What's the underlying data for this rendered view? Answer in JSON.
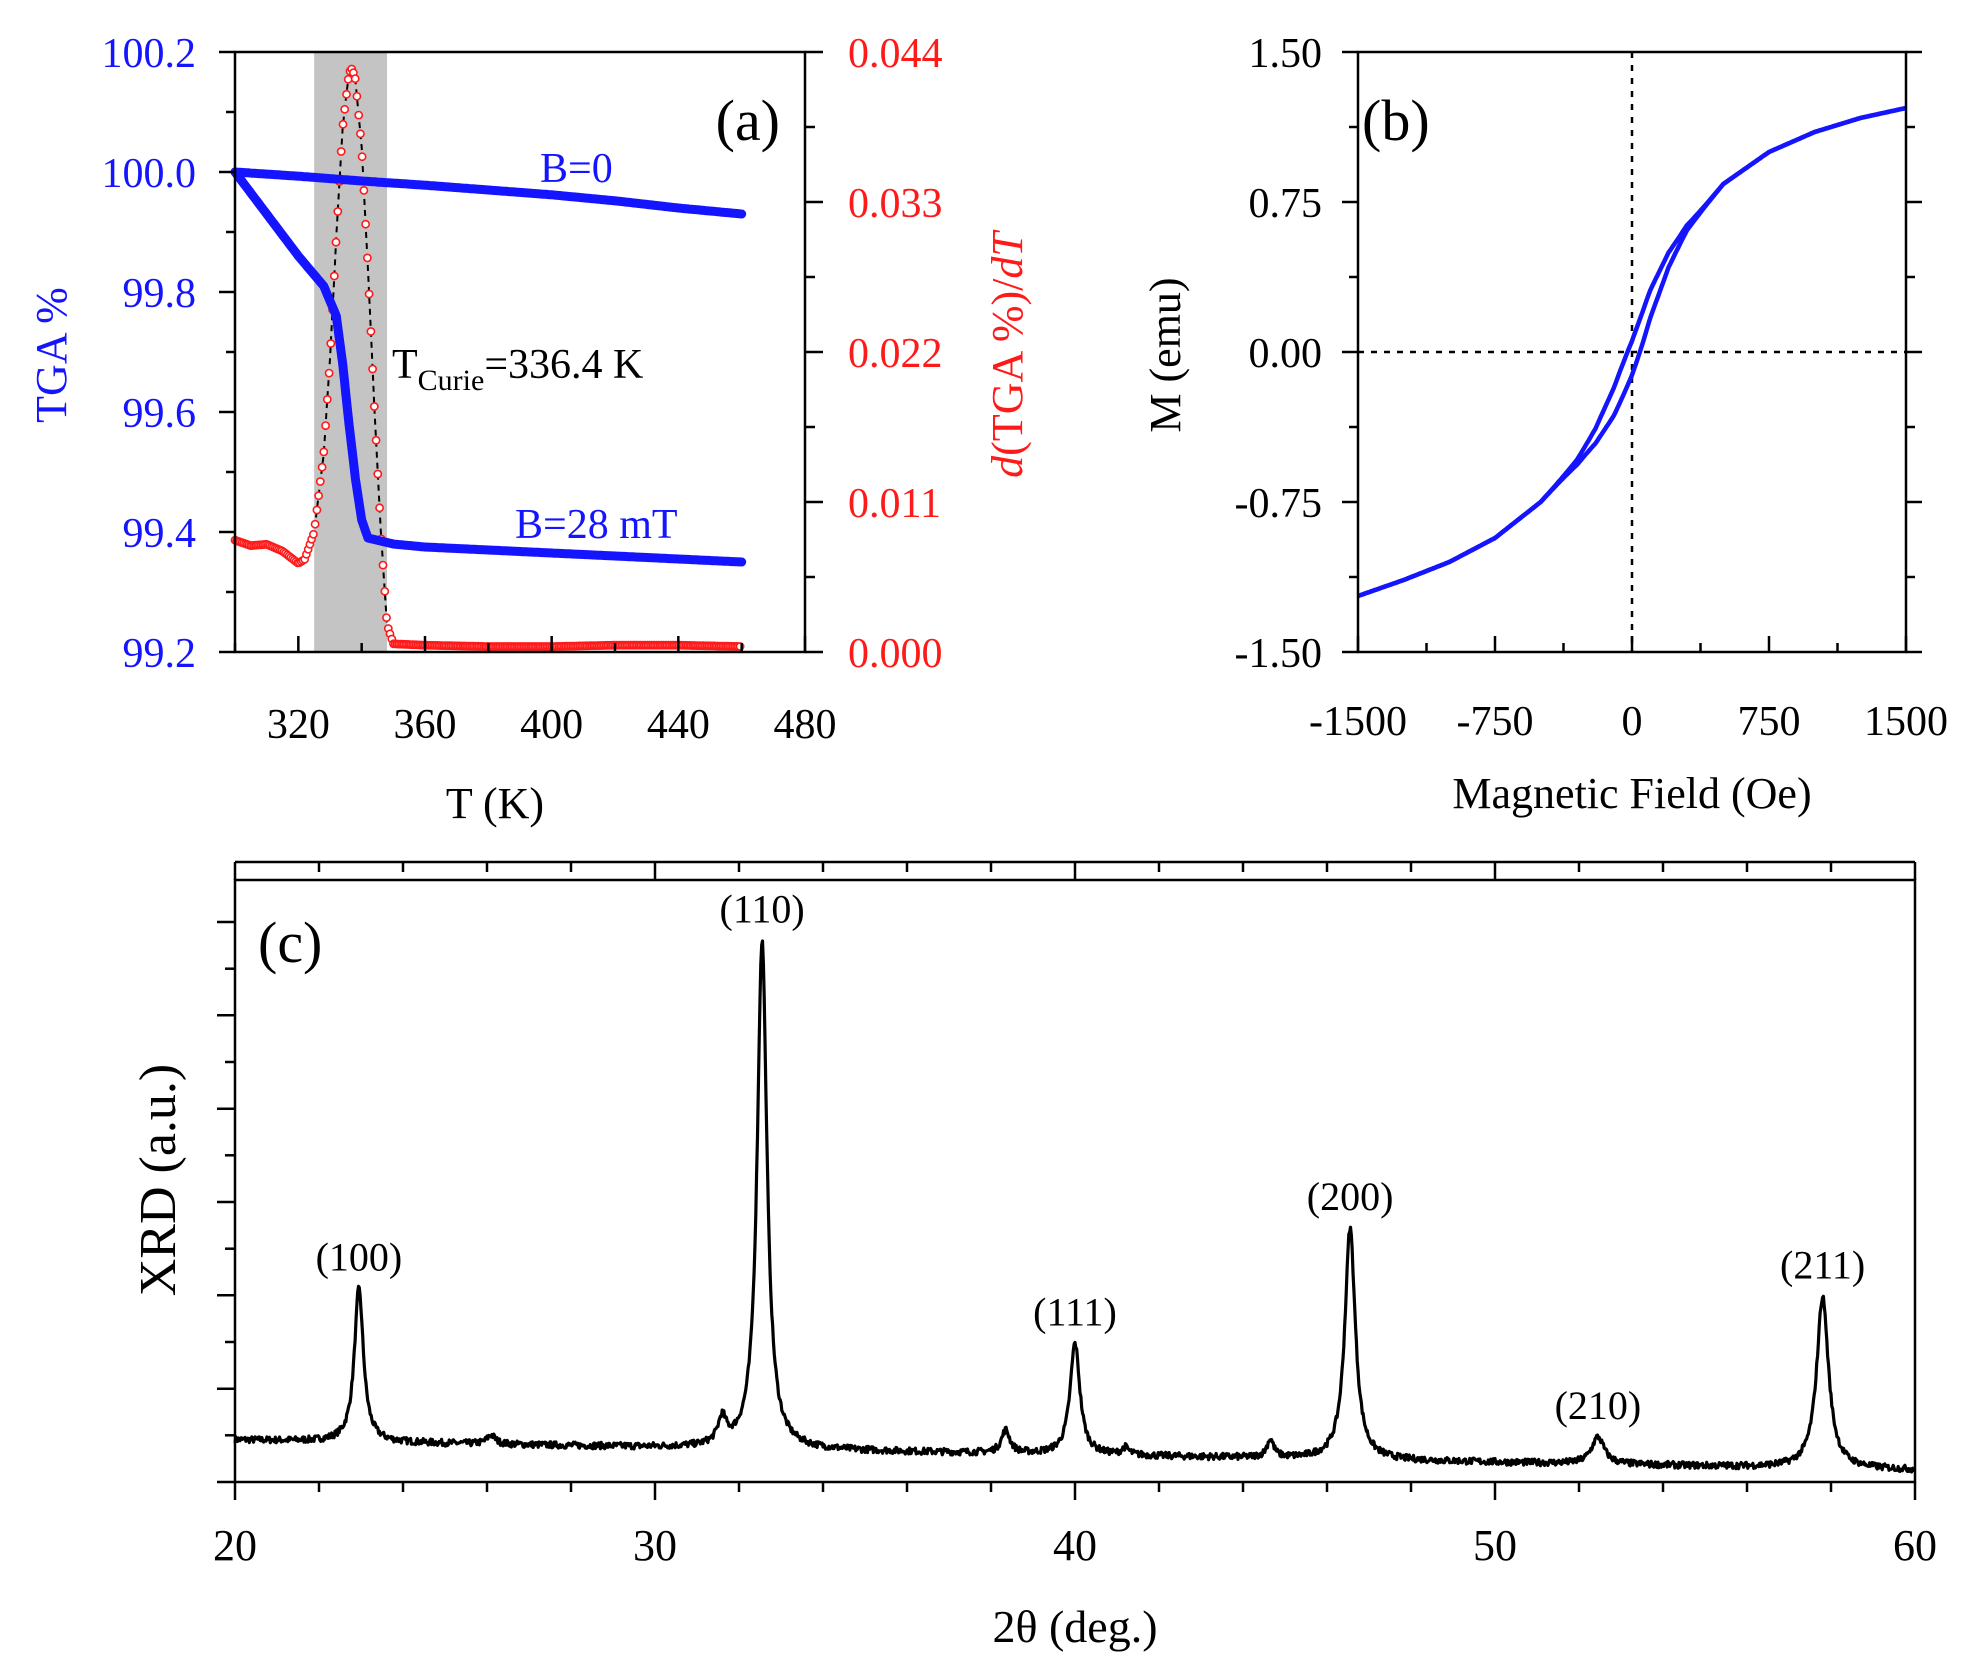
{
  "colors": {
    "tga": "#1414ff",
    "derivative": "#ff1a1a",
    "axis": "#000000",
    "shade": "#c4c4c4",
    "xrd": "#000000"
  },
  "chart_data": [
    {
      "panel": "(a)",
      "type": "line",
      "xlabel": "T (K)",
      "ylabel": "TGA %",
      "y2label_parts": [
        "d",
        "(TGA %)/",
        "dT"
      ],
      "xlim": [
        300,
        480
      ],
      "xticks": [
        "320",
        "360",
        "400",
        "440",
        "480"
      ],
      "xtick_values": [
        320,
        360,
        400,
        440,
        480
      ],
      "ylim": [
        99.2,
        100.2
      ],
      "yticks": [
        "99.2",
        "99.4",
        "99.6",
        "99.8",
        "100.0",
        "100.2"
      ],
      "ytick_values": [
        99.2,
        99.4,
        99.6,
        99.8,
        100.0,
        100.2
      ],
      "y2lim": [
        0,
        0.044
      ],
      "y2ticks": [
        "0.000",
        "0.011",
        "0.022",
        "0.033",
        "0.044"
      ],
      "y2tick_values": [
        0,
        0.011,
        0.022,
        0.033,
        0.044
      ],
      "shaded_band": [
        325,
        348
      ],
      "annotation": {
        "main": "T",
        "sub": "Curie",
        "rest": "=336.4 K"
      },
      "series": [
        {
          "name": "B=0",
          "axis": "left",
          "x": [
            300,
            320,
            340,
            360,
            380,
            400,
            420,
            440,
            460
          ],
          "y": [
            100.0,
            99.993,
            99.985,
            99.978,
            99.97,
            99.962,
            99.952,
            99.94,
            99.93
          ]
        },
        {
          "name": "B=28 mT",
          "axis": "left",
          "x": [
            300,
            310,
            320,
            328,
            332,
            334,
            336,
            338,
            340,
            342,
            350,
            360,
            380,
            400,
            420,
            440,
            460
          ],
          "y": [
            100.0,
            99.93,
            99.86,
            99.81,
            99.76,
            99.68,
            99.58,
            99.49,
            99.42,
            99.39,
            99.38,
            99.375,
            99.37,
            99.365,
            99.36,
            99.355,
            99.35
          ]
        },
        {
          "name": "",
          "axis": "right",
          "x": [
            300,
            305,
            310,
            315,
            320,
            322,
            325,
            328,
            330,
            332,
            334,
            336,
            337,
            338,
            340,
            342,
            344,
            346,
            348,
            350,
            360,
            380,
            400,
            420,
            440,
            460
          ],
          "y": [
            0.0082,
            0.0078,
            0.0079,
            0.0074,
            0.0065,
            0.0068,
            0.0088,
            0.0145,
            0.0215,
            0.0305,
            0.0385,
            0.0425,
            0.0428,
            0.042,
            0.037,
            0.028,
            0.018,
            0.009,
            0.002,
            0.0006,
            0.0005,
            0.0004,
            0.0004,
            0.0005,
            0.0005,
            0.0004
          ]
        }
      ]
    },
    {
      "panel": "(b)",
      "type": "line",
      "xlabel": "Magnetic Field (Oe)",
      "ylabel": "M (emu)",
      "xlim": [
        -1500,
        1500
      ],
      "xticks": [
        "-1500",
        "-750",
        "0",
        "750",
        "1500"
      ],
      "xtick_values": [
        -1500,
        -750,
        0,
        750,
        1500
      ],
      "ylim": [
        -1.5,
        1.5
      ],
      "yticks": [
        "-1.50",
        "-0.75",
        "0.00",
        "0.75",
        "1.50"
      ],
      "ytick_values": [
        -1.5,
        -0.75,
        0,
        0.75,
        1.5
      ],
      "series": [
        {
          "name": "",
          "x": [
            -1500,
            -1250,
            -1000,
            -750,
            -500,
            -300,
            -200,
            -100,
            -50,
            0,
            50,
            100,
            200,
            300,
            500,
            750,
            1000,
            1250,
            1500
          ],
          "y": [
            -1.22,
            -1.14,
            -1.05,
            -0.93,
            -0.75,
            -0.55,
            -0.42,
            -0.25,
            -0.14,
            -0.03,
            0.1,
            0.24,
            0.46,
            0.62,
            0.84,
            1.0,
            1.1,
            1.17,
            1.22
          ]
        }
      ]
    },
    {
      "panel": "(c)",
      "type": "line",
      "xlabel": "2θ (deg.)",
      "ylabel": "XRD (a.u.)",
      "xlim": [
        20,
        60
      ],
      "xticks": [
        "20",
        "30",
        "40",
        "50",
        "60"
      ],
      "xtick_values": [
        20,
        30,
        40,
        50,
        60
      ],
      "ylim": [
        0,
        100
      ],
      "baseline": {
        "x": [
          20,
          60
        ],
        "y": [
          7.0,
          2.0
        ]
      },
      "peaks": [
        {
          "label": "(100)",
          "x": 22.95,
          "height": 25.5,
          "width": 0.13
        },
        {
          "label": "",
          "x": 26.1,
          "height": 1.5,
          "width": 0.12
        },
        {
          "label": "",
          "x": 31.6,
          "height": 4.2,
          "width": 0.12
        },
        {
          "label": "(110)",
          "x": 32.55,
          "height": 84.5,
          "width": 0.14
        },
        {
          "label": "",
          "x": 38.35,
          "height": 3.8,
          "width": 0.12
        },
        {
          "label": "(111)",
          "x": 40.0,
          "height": 18.5,
          "width": 0.14
        },
        {
          "label": "",
          "x": 41.2,
          "height": 1.2,
          "width": 0.1
        },
        {
          "label": "",
          "x": 44.65,
          "height": 3.0,
          "width": 0.1
        },
        {
          "label": "(200)",
          "x": 46.55,
          "height": 38.5,
          "width": 0.15
        },
        {
          "label": "(210)",
          "x": 52.45,
          "height": 4.5,
          "width": 0.18
        },
        {
          "label": "(211)",
          "x": 57.8,
          "height": 28.5,
          "width": 0.17
        }
      ]
    }
  ]
}
